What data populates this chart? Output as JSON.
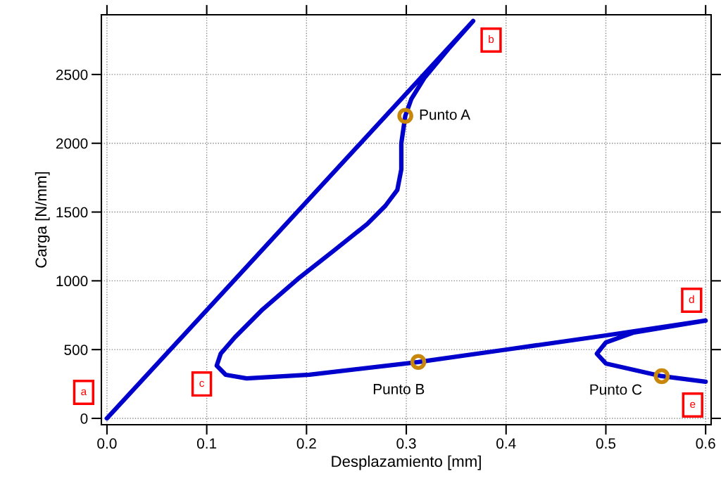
{
  "chart_data": {
    "type": "line",
    "xlabel": "Desplazamiento [mm]",
    "ylabel": "Carga [N/mm]",
    "xlim": [
      -0.0056,
      0.6055
    ],
    "ylim": [
      -46,
      2934
    ],
    "xticks": [
      {
        "value": 0,
        "label": "0.0"
      },
      0.1,
      0.2,
      0.3,
      0.4,
      0.5,
      0.6
    ],
    "yticks": [
      0,
      500,
      1000,
      1500,
      2000,
      2500
    ],
    "grid": true,
    "line_style": "solid",
    "series": [
      {
        "color": "#0000cc",
        "marker": "none",
        "x": [
          0,
          0.367,
          0.342,
          0.318,
          0.305,
          0.299,
          0.295,
          0.295,
          0.291,
          0.279,
          0.261,
          0.227,
          0.191,
          0.156,
          0.128,
          0.114,
          0.11,
          0.119,
          0.14,
          0.203,
          0.312,
          0.401,
          0.5,
          0.6,
          0.528,
          0.5,
          0.491,
          0.5,
          0.556,
          0.6
        ],
        "values": [
          0,
          2889,
          2684,
          2474,
          2321,
          2199,
          2000,
          1810,
          1661,
          1545,
          1414,
          1217,
          1012,
          792,
          588,
          470,
          383,
          317,
          291,
          317,
          410,
          501,
          603,
          711,
          624,
          552,
          470,
          399,
          307,
          266
        ]
      },
      {
        "type": "scatter",
        "name": "Punto A",
        "color": "#c8860a",
        "marker": "circle",
        "x": [
          0.299
        ],
        "values": [
          2199
        ]
      },
      {
        "type": "scatter",
        "name": "Punto B",
        "color": "#c8860a",
        "marker": "circle",
        "x": [
          0.312
        ],
        "values": [
          410
        ]
      },
      {
        "type": "scatter",
        "name": "Punto C",
        "color": "#c8860a",
        "marker": "circle",
        "x": [
          0.556
        ],
        "values": [
          307
        ]
      }
    ],
    "annotations": [
      "a",
      {
        "text": "b",
        "x": 0.385,
        "y": 2750
      },
      {
        "text": "c",
        "x": 0.095,
        "y": 250
      },
      {
        "text": "d",
        "x": 0.586,
        "y": 859
      },
      {
        "text": "e",
        "x": 0.587,
        "y": 97
      }
    ]
  }
}
